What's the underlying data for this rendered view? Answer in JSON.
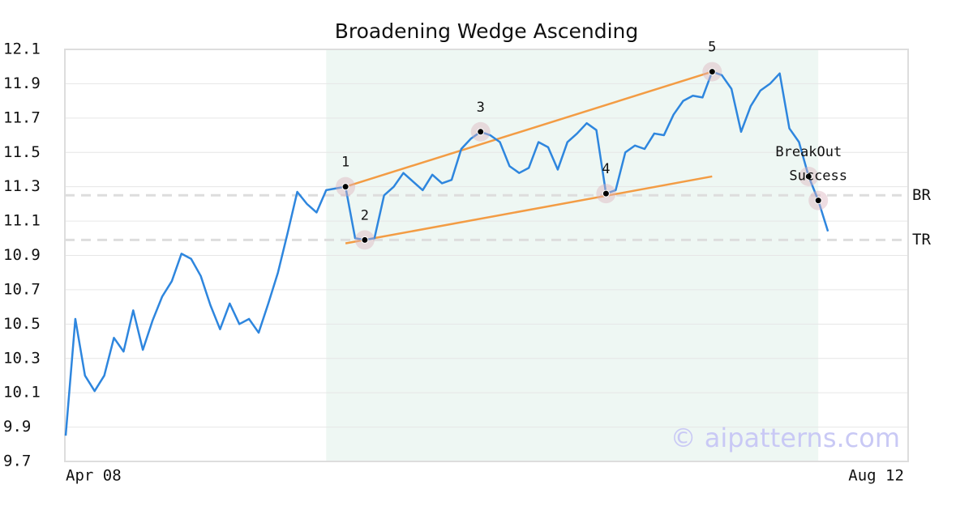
{
  "chart_data": {
    "type": "line",
    "title": "Broadening Wedge Ascending",
    "categories": [
      "Apr 08",
      null,
      null,
      null,
      null,
      null,
      null,
      null,
      null,
      null,
      null,
      null,
      null,
      null,
      null,
      null,
      null,
      null,
      null,
      null,
      null,
      null,
      null,
      null,
      null,
      null,
      null,
      null,
      null,
      null,
      null,
      null,
      null,
      null,
      null,
      null,
      null,
      null,
      null,
      null,
      null,
      null,
      null,
      null,
      null,
      null,
      null,
      null,
      null,
      null,
      null,
      null,
      null,
      null,
      null,
      null,
      null,
      null,
      null,
      null,
      null,
      null,
      null,
      null,
      null,
      null,
      null,
      null,
      null,
      null,
      null,
      null,
      null,
      null,
      null,
      null,
      null,
      null,
      null,
      null,
      null,
      null,
      null,
      null,
      "Aug 12"
    ],
    "series": [
      {
        "color": "#2e86de",
        "values": [
          9.85,
          10.53,
          10.2,
          10.11,
          10.2,
          10.42,
          10.34,
          10.58,
          10.35,
          10.52,
          10.66,
          10.75,
          10.91,
          10.88,
          10.78,
          10.61,
          10.47,
          10.62,
          10.5,
          10.53,
          10.45,
          10.62,
          10.8,
          11.03,
          11.27,
          11.2,
          11.15,
          11.28,
          11.29,
          11.3,
          11.0,
          10.99,
          11.0,
          11.25,
          11.3,
          11.38,
          11.33,
          11.28,
          11.37,
          11.32,
          11.34,
          11.52,
          11.58,
          11.62,
          11.6,
          11.56,
          11.42,
          11.38,
          11.41,
          11.56,
          11.53,
          11.4,
          11.56,
          11.61,
          11.67,
          11.63,
          11.26,
          11.28,
          11.5,
          11.54,
          11.52,
          11.61,
          11.6,
          11.72,
          11.8,
          11.83,
          11.82,
          11.97,
          11.95,
          11.87,
          11.62,
          11.77,
          11.86,
          11.9,
          11.96,
          11.64,
          11.56,
          11.36,
          11.22,
          11.04,
          null,
          null,
          null,
          null,
          null
        ]
      }
    ],
    "ylim": [
      9.7,
      12.1
    ],
    "yticks": [
      9.7,
      9.9,
      10.1,
      10.3,
      10.5,
      10.7,
      10.9,
      11.1,
      11.3,
      11.5,
      11.7,
      11.9,
      12.1
    ],
    "grid": true,
    "shade": {
      "from": 27,
      "to": 78,
      "color": "#eef7f3"
    },
    "pattern_points": [
      {
        "label": "1",
        "x": 29,
        "value": 11.3
      },
      {
        "label": "2",
        "x": 31,
        "value": 10.99
      },
      {
        "label": "3",
        "x": 43,
        "value": 11.62
      },
      {
        "label": "4",
        "x": 56,
        "value": 11.26
      },
      {
        "label": "5",
        "x": 67,
        "value": 11.97
      },
      {
        "label": "BreakOut",
        "x": 77,
        "value": 11.36
      },
      {
        "label": "Success",
        "x": 78,
        "value": 11.22
      }
    ],
    "trendlines": [
      {
        "color": "#f39c44",
        "x": [
          29,
          67
        ],
        "values": [
          11.3,
          11.97
        ]
      },
      {
        "color": "#f39c44",
        "x": [
          29,
          67
        ],
        "values": [
          10.97,
          11.36
        ]
      }
    ],
    "reference_lines": [
      {
        "label": "BR",
        "value": 11.25
      },
      {
        "label": "TR",
        "value": 10.99
      }
    ],
    "watermark": "© aipatterns.com"
  }
}
